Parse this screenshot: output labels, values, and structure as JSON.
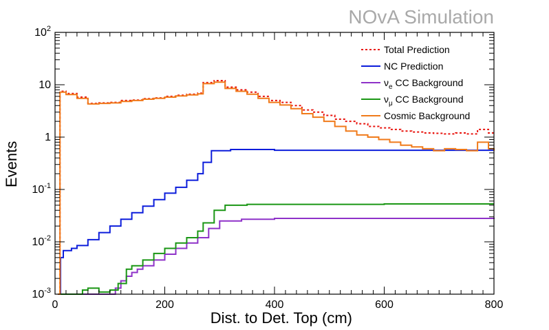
{
  "watermark": "NOvA Simulation",
  "chart_data": {
    "type": "line",
    "title": "",
    "xlabel": "Dist. to Det. Top (cm)",
    "ylabel": "Events",
    "xlim": [
      0,
      800
    ],
    "ylim": [
      0.001,
      100
    ],
    "yscale": "log",
    "grid": false,
    "legend_position": "top-right",
    "x_ticks": [
      "0",
      "200",
      "400",
      "600",
      "800"
    ],
    "y_ticks": [
      {
        "value": 0.001,
        "base": "10",
        "exp": "-3"
      },
      {
        "value": 0.01,
        "base": "10",
        "exp": "-2"
      },
      {
        "value": 0.1,
        "base": "10",
        "exp": "-1"
      },
      {
        "value": 1,
        "base": "1",
        "exp": ""
      },
      {
        "value": 10,
        "base": "10",
        "exp": ""
      },
      {
        "value": 100,
        "base": "10",
        "exp": "2"
      }
    ],
    "series": [
      {
        "name": "Total Prediction",
        "color": "#e8120c",
        "style": "dotted",
        "points": [
          [
            5,
            0.001
          ],
          [
            9,
            7.5
          ],
          [
            20,
            6.8
          ],
          [
            40,
            5.8
          ],
          [
            60,
            4.4
          ],
          [
            80,
            4.5
          ],
          [
            100,
            4.6
          ],
          [
            120,
            5
          ],
          [
            140,
            5.1
          ],
          [
            160,
            5.4
          ],
          [
            180,
            5.6
          ],
          [
            200,
            6
          ],
          [
            220,
            6.3
          ],
          [
            240,
            6.6
          ],
          [
            260,
            6.9
          ],
          [
            270,
            11
          ],
          [
            290,
            12
          ],
          [
            310,
            9
          ],
          [
            330,
            8
          ],
          [
            350,
            7.2
          ],
          [
            370,
            6
          ],
          [
            390,
            5
          ],
          [
            410,
            4.6
          ],
          [
            430,
            4
          ],
          [
            450,
            3.3
          ],
          [
            470,
            3
          ],
          [
            490,
            2.6
          ],
          [
            510,
            2.2
          ],
          [
            530,
            2
          ],
          [
            550,
            1.8
          ],
          [
            570,
            1.6
          ],
          [
            590,
            1.5
          ],
          [
            610,
            1.4
          ],
          [
            630,
            1.3
          ],
          [
            650,
            1.25
          ],
          [
            670,
            1.2
          ],
          [
            690,
            1.18
          ],
          [
            710,
            1.15
          ],
          [
            730,
            1.2
          ],
          [
            750,
            1.15
          ],
          [
            770,
            1.4
          ],
          [
            790,
            1.2
          ],
          [
            800,
            1.15
          ]
        ]
      },
      {
        "name": "NC Prediction",
        "color": "#0b1cdb",
        "style": "solid",
        "points": [
          [
            5,
            0.001
          ],
          [
            10,
            0.005
          ],
          [
            15,
            0.0068
          ],
          [
            30,
            0.0075
          ],
          [
            40,
            0.0085
          ],
          [
            60,
            0.011
          ],
          [
            80,
            0.015
          ],
          [
            100,
            0.02
          ],
          [
            120,
            0.027
          ],
          [
            140,
            0.036
          ],
          [
            160,
            0.048
          ],
          [
            180,
            0.064
          ],
          [
            200,
            0.085
          ],
          [
            220,
            0.11
          ],
          [
            240,
            0.15
          ],
          [
            260,
            0.2
          ],
          [
            270,
            0.33
          ],
          [
            285,
            0.55
          ],
          [
            320,
            0.58
          ],
          [
            400,
            0.56
          ],
          [
            500,
            0.56
          ],
          [
            600,
            0.56
          ],
          [
            700,
            0.56
          ],
          [
            800,
            0.56
          ]
        ]
      },
      {
        "name": "ν_e CC Background",
        "label_main": "ν",
        "label_sub": "e",
        "label_rest": " CC Background",
        "color": "#8e31c8",
        "style": "solid",
        "points": [
          [
            5,
            0.001
          ],
          [
            100,
            0.001
          ],
          [
            110,
            0.0013
          ],
          [
            120,
            0.0018
          ],
          [
            130,
            0.0022
          ],
          [
            140,
            0.0026
          ],
          [
            150,
            0.003
          ],
          [
            160,
            0.0035
          ],
          [
            180,
            0.0045
          ],
          [
            200,
            0.0058
          ],
          [
            220,
            0.0075
          ],
          [
            240,
            0.0095
          ],
          [
            260,
            0.012
          ],
          [
            280,
            0.018
          ],
          [
            300,
            0.025
          ],
          [
            340,
            0.027
          ],
          [
            400,
            0.028
          ],
          [
            500,
            0.028
          ],
          [
            600,
            0.028
          ],
          [
            700,
            0.028
          ],
          [
            800,
            0.029
          ]
        ]
      },
      {
        "name": "ν_μ CC Background",
        "label_main": "ν",
        "label_sub": "μ",
        "label_rest": " CC Background",
        "color": "#1a9614",
        "style": "solid",
        "points": [
          [
            5,
            0.001
          ],
          [
            40,
            0.001
          ],
          [
            50,
            0.0012
          ],
          [
            60,
            0.0013
          ],
          [
            80,
            0.0011
          ],
          [
            100,
            0.0012
          ],
          [
            115,
            0.0016
          ],
          [
            130,
            0.003
          ],
          [
            140,
            0.0035
          ],
          [
            160,
            0.0045
          ],
          [
            180,
            0.006
          ],
          [
            200,
            0.0075
          ],
          [
            220,
            0.0095
          ],
          [
            240,
            0.012
          ],
          [
            260,
            0.016
          ],
          [
            270,
            0.023
          ],
          [
            290,
            0.04
          ],
          [
            310,
            0.05
          ],
          [
            350,
            0.052
          ],
          [
            400,
            0.052
          ],
          [
            500,
            0.052
          ],
          [
            600,
            0.053
          ],
          [
            700,
            0.053
          ],
          [
            800,
            0.053
          ]
        ]
      },
      {
        "name": "Cosmic Background",
        "color": "#f07a1a",
        "style": "solid",
        "points": [
          [
            5,
            0.001
          ],
          [
            9,
            7.2
          ],
          [
            20,
            6.5
          ],
          [
            40,
            5.5
          ],
          [
            60,
            4.3
          ],
          [
            80,
            4.4
          ],
          [
            100,
            4.5
          ],
          [
            120,
            4.8
          ],
          [
            140,
            5
          ],
          [
            160,
            5.3
          ],
          [
            180,
            5.5
          ],
          [
            200,
            5.8
          ],
          [
            220,
            6.1
          ],
          [
            240,
            6.4
          ],
          [
            260,
            6.7
          ],
          [
            270,
            10.5
          ],
          [
            290,
            11.2
          ],
          [
            310,
            8.5
          ],
          [
            330,
            7.5
          ],
          [
            350,
            6.6
          ],
          [
            370,
            5.5
          ],
          [
            390,
            4.6
          ],
          [
            410,
            4.1
          ],
          [
            430,
            3.5
          ],
          [
            450,
            2.8
          ],
          [
            470,
            2.4
          ],
          [
            490,
            2
          ],
          [
            510,
            1.6
          ],
          [
            530,
            1.3
          ],
          [
            550,
            1.1
          ],
          [
            570,
            1
          ],
          [
            590,
            0.9
          ],
          [
            610,
            0.8
          ],
          [
            630,
            0.7
          ],
          [
            650,
            0.65
          ],
          [
            670,
            0.6
          ],
          [
            690,
            0.55
          ],
          [
            710,
            0.6
          ],
          [
            730,
            0.58
          ],
          [
            750,
            0.55
          ],
          [
            770,
            0.8
          ],
          [
            790,
            0.6
          ],
          [
            800,
            0.55
          ]
        ]
      }
    ]
  }
}
